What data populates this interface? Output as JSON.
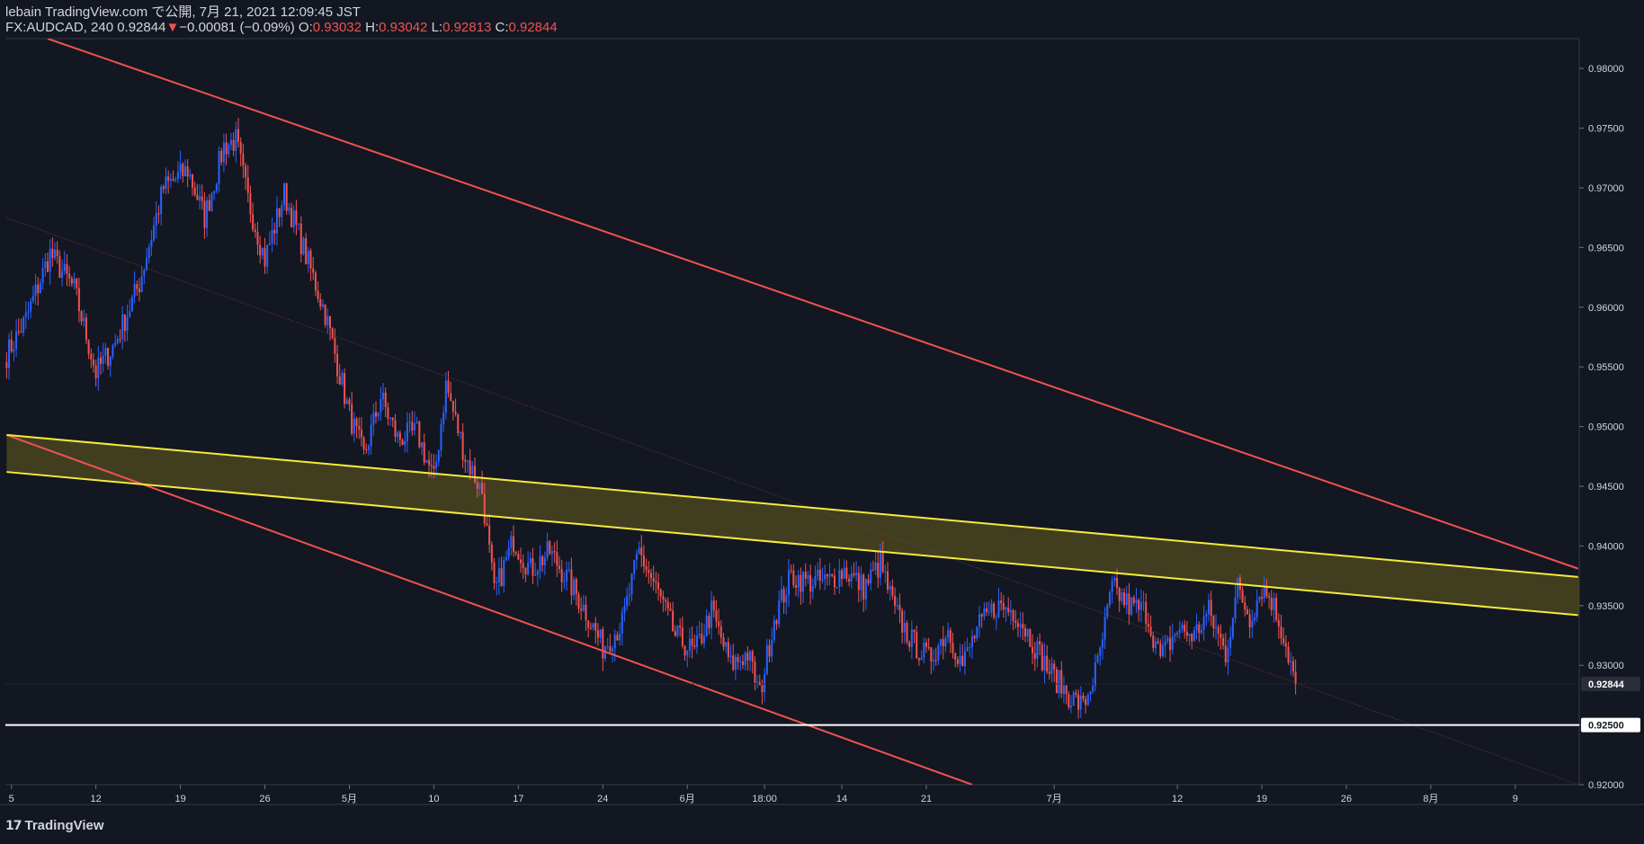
{
  "header": {
    "publish_line": "lebain TradingView.com で公開, 7月 21, 2021 12:09:45 JST",
    "symbol_line": {
      "symbol": "FX:AUDCAD, 240 0.92844",
      "change": "−0.00081 (−0.09%)",
      "open_label": "O:",
      "open": "0.93032",
      "high_label": "H:",
      "high": "0.93042",
      "low_label": "L:",
      "low": "0.92813",
      "close_label": "C:",
      "close": "0.92844"
    }
  },
  "branding": {
    "logo_text": "TradingView",
    "icon": "tradingview-logo-icon"
  },
  "colors": {
    "background": "#131722",
    "up": "#2962ff",
    "down": "#ef5350",
    "channel": "#ef5350",
    "zone_line": "#f5eb3b",
    "zone_fill": "#4a4520",
    "support": "#ffffff"
  },
  "chart_data": {
    "type": "candlestick",
    "symbol": "FX:AUDCAD",
    "ylim": [
      0.92,
      0.9825
    ],
    "y_ticks": [
      "0.98000",
      "0.97500",
      "0.97000",
      "0.96500",
      "0.96000",
      "0.95500",
      "0.95000",
      "0.94500",
      "0.94000",
      "0.93500",
      "0.93000",
      "0.92500",
      "0.92000"
    ],
    "y_tick_values": [
      0.98,
      0.975,
      0.97,
      0.965,
      0.96,
      0.955,
      0.95,
      0.945,
      0.94,
      0.935,
      0.93,
      0.925,
      0.92
    ],
    "x_ticks": [
      {
        "label": "5",
        "index": 2
      },
      {
        "label": "12",
        "index": 37
      },
      {
        "label": "19",
        "index": 72
      },
      {
        "label": "26",
        "index": 107
      },
      {
        "label": "5月",
        "index": 142
      },
      {
        "label": "10",
        "index": 177
      },
      {
        "label": "17",
        "index": 212
      },
      {
        "label": "24",
        "index": 247
      },
      {
        "label": "6月",
        "index": 282
      },
      {
        "label": "18:00",
        "index": 314
      },
      {
        "label": "14",
        "index": 346
      },
      {
        "label": "21",
        "index": 381
      },
      {
        "label": "7月",
        "index": 434
      },
      {
        "label": "12",
        "index": 485
      },
      {
        "label": "19",
        "index": 520
      },
      {
        "label": "26",
        "index": 555
      },
      {
        "label": "8月",
        "index": 590
      },
      {
        "label": "9",
        "index": 625
      }
    ],
    "last_price": "0.92844",
    "last_price_value": 0.92844,
    "support_level": "0.92500",
    "support_value": 0.925,
    "anchors": [
      [
        0,
        0.956
      ],
      [
        8,
        0.959
      ],
      [
        18,
        0.9645
      ],
      [
        28,
        0.9615
      ],
      [
        37,
        0.9545
      ],
      [
        45,
        0.957
      ],
      [
        55,
        0.962
      ],
      [
        65,
        0.97
      ],
      [
        75,
        0.9715
      ],
      [
        82,
        0.9675
      ],
      [
        90,
        0.9735
      ],
      [
        95,
        0.974
      ],
      [
        100,
        0.969
      ],
      [
        107,
        0.964
      ],
      [
        115,
        0.9695
      ],
      [
        122,
        0.9655
      ],
      [
        132,
        0.9595
      ],
      [
        142,
        0.951
      ],
      [
        148,
        0.9475
      ],
      [
        155,
        0.9525
      ],
      [
        162,
        0.949
      ],
      [
        170,
        0.9495
      ],
      [
        177,
        0.9455
      ],
      [
        182,
        0.9535
      ],
      [
        190,
        0.9475
      ],
      [
        197,
        0.9445
      ],
      [
        202,
        0.936
      ],
      [
        210,
        0.9405
      ],
      [
        217,
        0.938
      ],
      [
        225,
        0.9395
      ],
      [
        233,
        0.937
      ],
      [
        240,
        0.9345
      ],
      [
        247,
        0.9315
      ],
      [
        255,
        0.9335
      ],
      [
        262,
        0.9395
      ],
      [
        270,
        0.936
      ],
      [
        277,
        0.9325
      ],
      [
        285,
        0.931
      ],
      [
        292,
        0.9345
      ],
      [
        300,
        0.93
      ],
      [
        307,
        0.931
      ],
      [
        312,
        0.9275
      ],
      [
        318,
        0.934
      ],
      [
        325,
        0.9375
      ],
      [
        332,
        0.937
      ],
      [
        340,
        0.937
      ],
      [
        347,
        0.938
      ],
      [
        355,
        0.9365
      ],
      [
        362,
        0.9385
      ],
      [
        368,
        0.9345
      ],
      [
        375,
        0.932
      ],
      [
        382,
        0.9305
      ],
      [
        390,
        0.933
      ],
      [
        396,
        0.93
      ],
      [
        402,
        0.933
      ],
      [
        410,
        0.935
      ],
      [
        418,
        0.9345
      ],
      [
        425,
        0.932
      ],
      [
        432,
        0.9295
      ],
      [
        440,
        0.9275
      ],
      [
        446,
        0.9265
      ],
      [
        452,
        0.93
      ],
      [
        458,
        0.9365
      ],
      [
        465,
        0.935
      ],
      [
        472,
        0.9345
      ],
      [
        478,
        0.9305
      ],
      [
        485,
        0.933
      ],
      [
        492,
        0.9325
      ],
      [
        498,
        0.9345
      ],
      [
        505,
        0.931
      ],
      [
        510,
        0.9365
      ],
      [
        515,
        0.934
      ],
      [
        520,
        0.9365
      ],
      [
        524,
        0.9355
      ],
      [
        529,
        0.9325
      ],
      [
        534,
        0.9285
      ]
    ],
    "trendlines": [
      {
        "name": "channel-upper",
        "p1": [
          17,
          0.9825
        ],
        "p2": [
          651,
          0.9381
        ]
      },
      {
        "name": "channel-lower",
        "p1": [
          0,
          0.9493
        ],
        "p2": [
          400,
          0.92
        ]
      },
      {
        "name": "zone-upper",
        "p1": [
          0,
          0.9493
        ],
        "p2": [
          651,
          0.9374
        ]
      },
      {
        "name": "zone-lower",
        "p1": [
          0,
          0.9462
        ],
        "p2": [
          651,
          0.9342
        ]
      },
      {
        "name": "dotted-median",
        "p1": [
          0,
          0.9675
        ],
        "p2": [
          651,
          0.92
        ]
      }
    ]
  }
}
